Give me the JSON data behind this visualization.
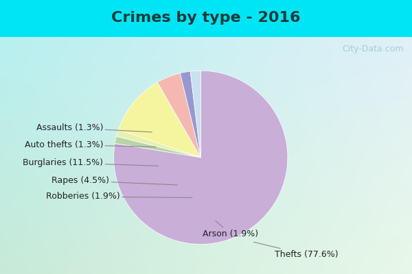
{
  "title": "Crimes by type - 2016",
  "slices": [
    {
      "label": "Thefts (77.6%)",
      "value": 77.6,
      "color": "#c9aed8"
    },
    {
      "label": "Assaults (1.3%)",
      "value": 1.3,
      "color": "#b8d4a8"
    },
    {
      "label": "Auto thefts (1.3%)",
      "value": 1.3,
      "color": "#e8f0b0"
    },
    {
      "label": "Burglaries (11.5%)",
      "value": 11.5,
      "color": "#f5f5a0"
    },
    {
      "label": "Rapes (4.5%)",
      "value": 4.5,
      "color": "#f5b8b0"
    },
    {
      "label": "Robberies (1.9%)",
      "value": 1.9,
      "color": "#9898d0"
    },
    {
      "label": "Arson (1.9%)",
      "value": 1.9,
      "color": "#c8e0f0"
    }
  ],
  "bg_top_color": "#00e5f5",
  "bg_main_top": "#b0f0f8",
  "bg_main_bottom": "#d8f0d8",
  "title_fontsize": 16,
  "label_fontsize": 9,
  "watermark": "City-Data.com",
  "watermark_color": "#a0c8d8"
}
